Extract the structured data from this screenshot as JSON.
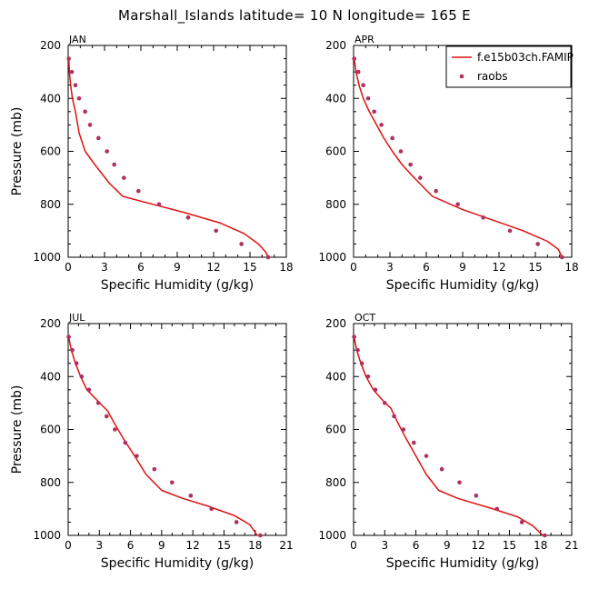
{
  "figure_title": "Marshall_Islands  latitude= 10 N longitude= 165 E",
  "legend": {
    "model_label": "f.e15b03ch.FAMIP",
    "obs_label": "raobs",
    "model_color": "#dd1111",
    "obs_color": "#b03060"
  },
  "chart_data": [
    {
      "type": "line",
      "panel": "JAN",
      "title": "JAN",
      "xlabel": "Specific Humidity (g/kg)",
      "ylabel": "Pressure (mb)",
      "xlim": [
        0,
        18
      ],
      "xticks": [
        0,
        3,
        6,
        9,
        12,
        15,
        18
      ],
      "ylim": [
        1000,
        200
      ],
      "yticks": [
        200,
        400,
        600,
        800,
        1000
      ],
      "series": [
        {
          "name": "f.e15b03ch.FAMIP",
          "style": "line",
          "x": [
            0.05,
            0.1,
            0.2,
            0.35,
            0.6,
            0.9,
            1.4,
            2.2,
            3.4,
            4.5,
            7.0,
            9.5,
            12.5,
            14.5,
            15.7,
            16.3,
            16.5
          ],
          "y": [
            250,
            300,
            350,
            400,
            450,
            530,
            600,
            650,
            720,
            770,
            800,
            830,
            870,
            910,
            950,
            980,
            1000
          ]
        },
        {
          "name": "raobs",
          "style": "markers",
          "x": [
            0.05,
            0.3,
            0.6,
            0.9,
            1.4,
            1.8,
            2.5,
            3.2,
            3.8,
            4.6,
            5.8,
            7.5,
            9.9,
            12.2,
            14.3,
            16.5
          ],
          "y": [
            250,
            300,
            350,
            400,
            450,
            500,
            550,
            600,
            650,
            700,
            750,
            800,
            850,
            900,
            950,
            1000
          ]
        }
      ]
    },
    {
      "type": "line",
      "panel": "APR",
      "title": "APR",
      "xlabel": "Specific Humidity (g/kg)",
      "ylabel": "",
      "xlim": [
        0,
        18
      ],
      "xticks": [
        0,
        3,
        6,
        9,
        12,
        15,
        18
      ],
      "ylim": [
        1000,
        200
      ],
      "yticks": [
        200,
        400,
        600,
        800,
        1000
      ],
      "series": [
        {
          "name": "f.e15b03ch.FAMIP",
          "style": "line",
          "x": [
            0.05,
            0.2,
            0.45,
            0.8,
            1.3,
            1.9,
            2.5,
            3.2,
            4.0,
            5.0,
            6.5,
            9.0,
            11.5,
            14.0,
            16.0,
            16.9,
            17.2
          ],
          "y": [
            250,
            300,
            350,
            400,
            450,
            500,
            550,
            600,
            650,
            700,
            770,
            820,
            860,
            900,
            940,
            970,
            1000
          ]
        },
        {
          "name": "raobs",
          "style": "markers",
          "x": [
            0.05,
            0.4,
            0.8,
            1.2,
            1.7,
            2.3,
            3.2,
            3.9,
            4.7,
            5.5,
            6.8,
            8.6,
            10.7,
            12.9,
            15.2,
            17.2
          ],
          "y": [
            250,
            300,
            350,
            400,
            450,
            500,
            550,
            600,
            650,
            700,
            750,
            800,
            850,
            900,
            950,
            1000
          ]
        }
      ]
    },
    {
      "type": "line",
      "panel": "JUL",
      "title": "JUL",
      "xlabel": "Specific Humidity (g/kg)",
      "ylabel": "Pressure (mb)",
      "xlim": [
        0,
        21
      ],
      "xticks": [
        0,
        3,
        6,
        9,
        12,
        15,
        18,
        21
      ],
      "ylim": [
        1000,
        200
      ],
      "yticks": [
        200,
        400,
        600,
        800,
        1000
      ],
      "series": [
        {
          "name": "f.e15b03ch.FAMIP",
          "style": "line",
          "x": [
            0.05,
            0.3,
            0.7,
            1.2,
            1.8,
            2.8,
            3.8,
            4.5,
            5.4,
            6.4,
            7.5,
            9.0,
            11.0,
            13.5,
            16.0,
            17.5,
            18.2
          ],
          "y": [
            250,
            300,
            350,
            400,
            450,
            490,
            530,
            580,
            640,
            700,
            770,
            830,
            860,
            890,
            925,
            960,
            1000
          ]
        },
        {
          "name": "raobs",
          "style": "markers",
          "x": [
            0.05,
            0.4,
            0.8,
            1.3,
            2.0,
            2.9,
            3.7,
            4.5,
            5.5,
            6.6,
            8.3,
            10.0,
            11.8,
            13.8,
            16.2,
            18.5
          ],
          "y": [
            250,
            300,
            350,
            400,
            450,
            500,
            550,
            600,
            650,
            700,
            750,
            800,
            850,
            900,
            950,
            1000
          ]
        }
      ]
    },
    {
      "type": "line",
      "panel": "OCT",
      "title": "OCT",
      "xlabel": "Specific Humidity (g/kg)",
      "ylabel": "",
      "xlim": [
        0,
        21
      ],
      "xticks": [
        0,
        3,
        6,
        9,
        12,
        15,
        18,
        21
      ],
      "ylim": [
        1000,
        200
      ],
      "yticks": [
        200,
        400,
        600,
        800,
        1000
      ],
      "series": [
        {
          "name": "f.e15b03ch.FAMIP",
          "style": "line",
          "x": [
            0.05,
            0.3,
            0.7,
            1.2,
            1.9,
            2.8,
            3.6,
            4.2,
            5.0,
            6.0,
            7.0,
            8.2,
            10.0,
            13.0,
            15.8,
            17.3,
            18.2
          ],
          "y": [
            250,
            300,
            350,
            400,
            450,
            490,
            520,
            570,
            630,
            700,
            770,
            830,
            860,
            895,
            930,
            965,
            1000
          ]
        },
        {
          "name": "raobs",
          "style": "markers",
          "x": [
            0.05,
            0.4,
            0.8,
            1.4,
            2.1,
            3.0,
            3.9,
            4.8,
            5.8,
            7.0,
            8.5,
            10.2,
            11.8,
            13.8,
            16.2,
            18.4
          ],
          "y": [
            250,
            300,
            350,
            400,
            450,
            500,
            550,
            600,
            650,
            700,
            750,
            800,
            850,
            900,
            950,
            1000
          ]
        }
      ]
    }
  ]
}
